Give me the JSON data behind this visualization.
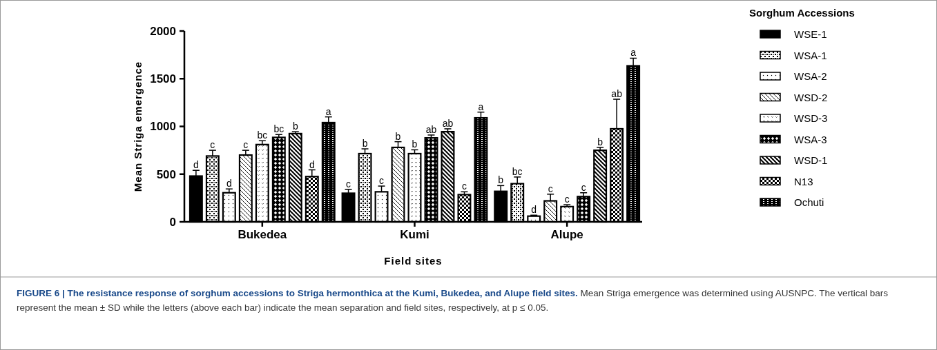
{
  "chart_data": {
    "type": "bar",
    "xlabel": "Field sites",
    "ylabel": "Mean Striga emergence",
    "legend_title": "Sorghum Accessions",
    "legend": "right",
    "categories": [
      "Bukedea",
      "Kumi",
      "Alupe"
    ],
    "ylim": [
      0,
      2000
    ],
    "yticks": [
      0,
      500,
      1000,
      1500,
      2000
    ],
    "grid": false,
    "series": [
      {
        "name": "WSE-1",
        "color": "#000000",
        "values": [
          480,
          300,
          320
        ],
        "errors": [
          60,
          40,
          60
        ],
        "value_labels": [
          "d",
          "c",
          "b"
        ]
      },
      {
        "name": "WSA-1",
        "color": "#000000",
        "values": [
          690,
          715,
          400
        ],
        "errors": [
          60,
          50,
          70
        ],
        "value_labels": [
          "c",
          "b",
          "bc"
        ]
      },
      {
        "name": "WSA-2",
        "color": "#000000",
        "values": [
          305,
          315,
          60
        ],
        "errors": [
          40,
          60,
          10
        ],
        "value_labels": [
          "d",
          "c",
          "d"
        ]
      },
      {
        "name": "WSD-2",
        "color": "#000000",
        "values": [
          700,
          780,
          220
        ],
        "errors": [
          50,
          60,
          70
        ],
        "value_labels": [
          "c",
          "b",
          "c"
        ]
      },
      {
        "name": "WSD-3",
        "color": "#000000",
        "values": [
          810,
          715,
          160
        ],
        "errors": [
          40,
          40,
          20
        ],
        "value_labels": [
          "bc",
          "b",
          "c"
        ]
      },
      {
        "name": "WSA-3",
        "color": "#000000",
        "values": [
          885,
          880,
          265
        ],
        "errors": [
          30,
          30,
          40
        ],
        "value_labels": [
          "bc",
          "ab",
          "c"
        ]
      },
      {
        "name": "WSD-1",
        "color": "#000000",
        "values": [
          925,
          945,
          750
        ],
        "errors": [
          20,
          30,
          30
        ],
        "value_labels": [
          "b",
          "ab",
          "b"
        ]
      },
      {
        "name": "N13",
        "color": "#000000",
        "values": [
          475,
          285,
          975
        ],
        "errors": [
          70,
          30,
          310
        ],
        "value_labels": [
          "d",
          "c",
          "ab"
        ]
      },
      {
        "name": "Ochuti",
        "color": "#000000",
        "values": [
          1040,
          1090,
          1635
        ],
        "errors": [
          60,
          60,
          80
        ],
        "value_labels": [
          "a",
          "a",
          "a"
        ]
      }
    ],
    "annotations": [
      "FIGURE 6 | The resistance response of sorghum accessions to Striga hermonthica at the Kumi, Bukedea, and Alupe field sites.",
      "Mean Striga emergence was determined using AUSNPC. The vertical bars represent the mean ± SD while the letters (above each bar) indicate the mean separation and field sites, respectively, at p ≤ 0.05."
    ]
  }
}
